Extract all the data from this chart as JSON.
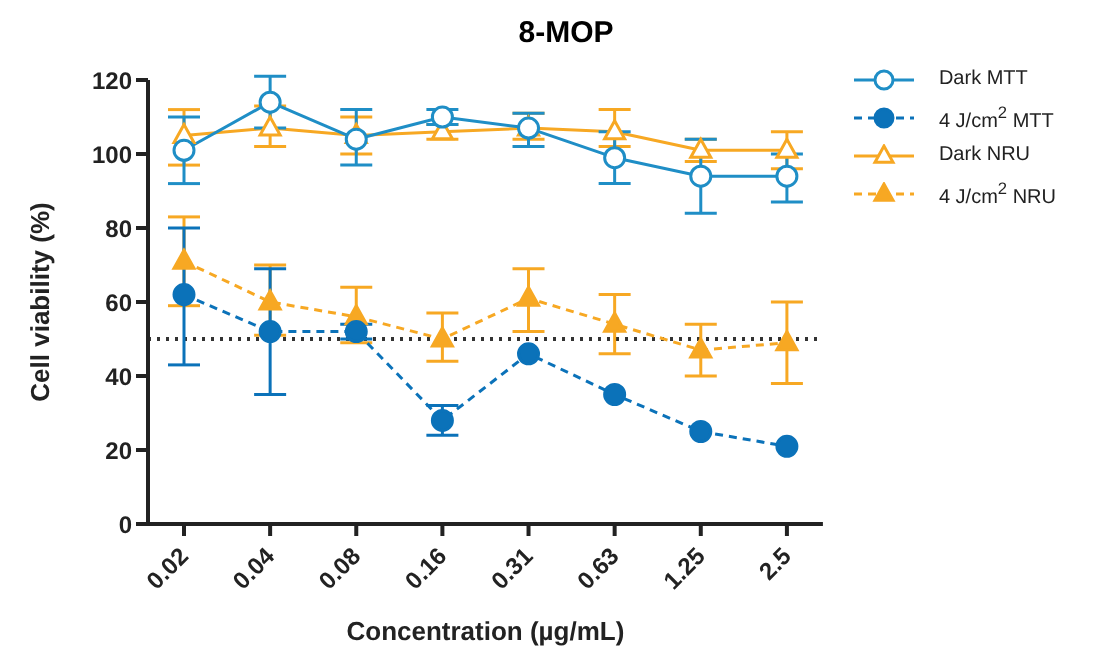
{
  "chart_data": {
    "type": "line",
    "title": "8-MOP",
    "xlabel": "Concentration (µg/mL)",
    "ylabel": "Cell viability (%)",
    "categories": [
      "0.02",
      "0.04",
      "0.08",
      "0.16",
      "0.31",
      "0.63",
      "1.25",
      "2.5"
    ],
    "ylim": [
      0,
      120
    ],
    "yticks": [
      0,
      20,
      40,
      60,
      80,
      100,
      120
    ],
    "grid": false,
    "legend": "top right",
    "ref_lines": [
      {
        "axis": "y",
        "value": 50,
        "color": "#333333",
        "line_style": "dotted"
      }
    ],
    "series": [
      {
        "name": "Dark MTT",
        "color": "#1f8ec6",
        "marker": "circle",
        "line_style": "solid",
        "values": [
          101,
          114,
          104,
          110,
          107,
          99,
          94,
          94
        ],
        "errors": [
          [
            92,
            110
          ],
          [
            107,
            121
          ],
          [
            97,
            112
          ],
          [
            108,
            112
          ],
          [
            102,
            111
          ],
          [
            92,
            106
          ],
          [
            84,
            104
          ],
          [
            87,
            100
          ]
        ]
      },
      {
        "name": "4 J/cm$^{2}$ MTT",
        "color": "#0b72b9",
        "marker": "circle",
        "line_style": "dashed",
        "values": [
          62,
          52,
          52,
          28,
          46,
          35,
          25,
          21
        ],
        "errors": [
          [
            43,
            80
          ],
          [
            35,
            69
          ],
          [
            50,
            54
          ],
          [
            24,
            32
          ],
          null,
          null,
          null,
          null
        ]
      },
      {
        "name": "Dark NRU",
        "color": "#f7a823",
        "marker": "triangle",
        "line_style": "solid",
        "values": [
          105,
          107,
          105,
          106,
          107,
          106,
          101,
          101
        ],
        "errors": [
          [
            97,
            112
          ],
          [
            102,
            113
          ],
          [
            100,
            110
          ],
          [
            104,
            108
          ],
          [
            104,
            111
          ],
          [
            102,
            112
          ],
          [
            98,
            104
          ],
          [
            96,
            106
          ]
        ]
      },
      {
        "name": "4 J/cm$^{2}$ NRU",
        "color": "#f7a823",
        "marker": "triangle",
        "line_style": "dashed",
        "values": [
          71,
          60,
          56,
          50,
          61,
          54,
          47,
          49
        ],
        "errors": [
          [
            59,
            83
          ],
          [
            51,
            70
          ],
          [
            49,
            64
          ],
          [
            44,
            57
          ],
          [
            52,
            69
          ],
          [
            46,
            62
          ],
          [
            40,
            54
          ],
          [
            38,
            60
          ]
        ]
      }
    ]
  }
}
